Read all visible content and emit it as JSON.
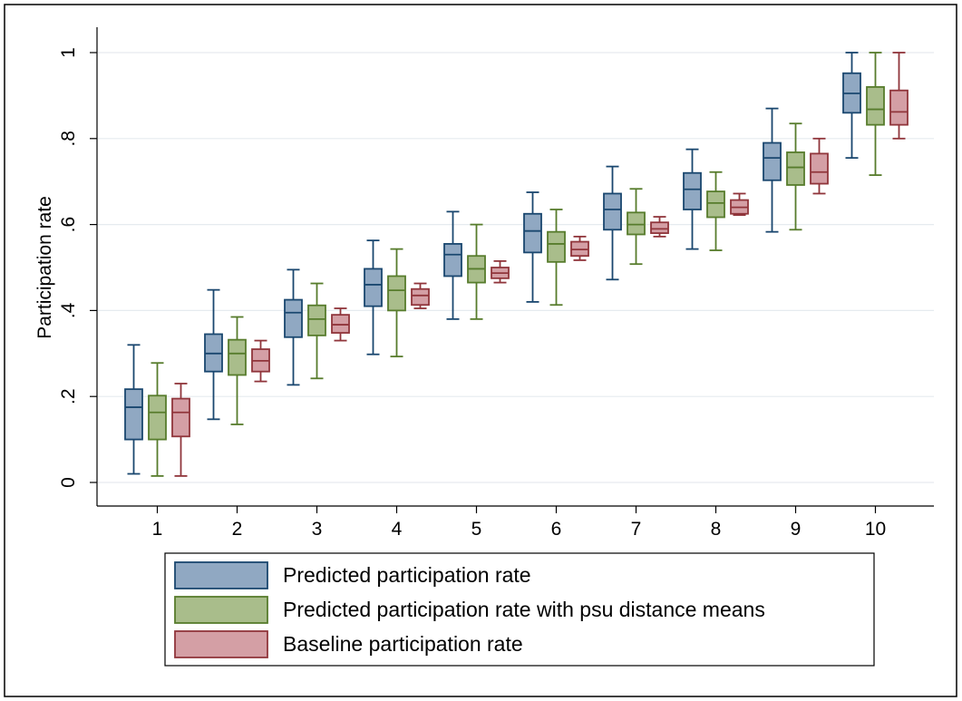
{
  "chart_data": {
    "type": "box",
    "ylabel": "Participation rate",
    "ylim": [
      0,
      1
    ],
    "yticks": [
      {
        "value": 0,
        "label": "0"
      },
      {
        "value": 0.2,
        "label": ".2"
      },
      {
        "value": 0.4,
        "label": ".4"
      },
      {
        "value": 0.6,
        "label": ".6"
      },
      {
        "value": 0.8,
        "label": ".8"
      },
      {
        "value": 1,
        "label": "1"
      }
    ],
    "categories": [
      "1",
      "2",
      "3",
      "4",
      "5",
      "6",
      "7",
      "8",
      "9",
      "10"
    ],
    "grid": true,
    "legend_position": "bottom",
    "series": [
      {
        "name": "Predicted participation rate",
        "fill": "#90a8c2",
        "stroke": "#1a476f",
        "boxes": [
          {
            "min": 0.02,
            "q1": 0.1,
            "median": 0.175,
            "q3": 0.217,
            "max": 0.32
          },
          {
            "min": 0.147,
            "q1": 0.258,
            "median": 0.3,
            "q3": 0.345,
            "max": 0.448
          },
          {
            "min": 0.227,
            "q1": 0.338,
            "median": 0.395,
            "q3": 0.425,
            "max": 0.495
          },
          {
            "min": 0.298,
            "q1": 0.41,
            "median": 0.46,
            "q3": 0.497,
            "max": 0.563
          },
          {
            "min": 0.38,
            "q1": 0.48,
            "median": 0.53,
            "q3": 0.555,
            "max": 0.63
          },
          {
            "min": 0.42,
            "q1": 0.535,
            "median": 0.585,
            "q3": 0.625,
            "max": 0.675
          },
          {
            "min": 0.472,
            "q1": 0.588,
            "median": 0.635,
            "q3": 0.672,
            "max": 0.735
          },
          {
            "min": 0.543,
            "q1": 0.635,
            "median": 0.682,
            "q3": 0.72,
            "max": 0.775
          },
          {
            "min": 0.583,
            "q1": 0.703,
            "median": 0.755,
            "q3": 0.79,
            "max": 0.87
          },
          {
            "min": 0.755,
            "q1": 0.86,
            "median": 0.905,
            "q3": 0.952,
            "max": 1.0
          }
        ]
      },
      {
        "name": "Predicted participation rate with psu distance means",
        "fill": "#a9bd8b",
        "stroke": "#577c2c",
        "boxes": [
          {
            "min": 0.015,
            "q1": 0.1,
            "median": 0.163,
            "q3": 0.202,
            "max": 0.278
          },
          {
            "min": 0.135,
            "q1": 0.25,
            "median": 0.3,
            "q3": 0.332,
            "max": 0.385
          },
          {
            "min": 0.242,
            "q1": 0.342,
            "median": 0.38,
            "q3": 0.412,
            "max": 0.463
          },
          {
            "min": 0.293,
            "q1": 0.4,
            "median": 0.447,
            "q3": 0.48,
            "max": 0.543
          },
          {
            "min": 0.38,
            "q1": 0.465,
            "median": 0.497,
            "q3": 0.527,
            "max": 0.6
          },
          {
            "min": 0.413,
            "q1": 0.513,
            "median": 0.555,
            "q3": 0.583,
            "max": 0.635
          },
          {
            "min": 0.508,
            "q1": 0.577,
            "median": 0.6,
            "q3": 0.628,
            "max": 0.683
          },
          {
            "min": 0.54,
            "q1": 0.617,
            "median": 0.65,
            "q3": 0.677,
            "max": 0.722
          },
          {
            "min": 0.588,
            "q1": 0.692,
            "median": 0.733,
            "q3": 0.768,
            "max": 0.835
          },
          {
            "min": 0.715,
            "q1": 0.832,
            "median": 0.868,
            "q3": 0.92,
            "max": 1.0
          }
        ]
      },
      {
        "name": "Baseline participation rate",
        "fill": "#d49fa5",
        "stroke": "#90353b",
        "boxes": [
          {
            "min": 0.015,
            "q1": 0.107,
            "median": 0.163,
            "q3": 0.195,
            "max": 0.23
          },
          {
            "min": 0.235,
            "q1": 0.258,
            "median": 0.283,
            "q3": 0.31,
            "max": 0.33
          },
          {
            "min": 0.33,
            "q1": 0.348,
            "median": 0.367,
            "q3": 0.39,
            "max": 0.405
          },
          {
            "min": 0.405,
            "q1": 0.413,
            "median": 0.435,
            "q3": 0.45,
            "max": 0.463
          },
          {
            "min": 0.465,
            "q1": 0.475,
            "median": 0.487,
            "q3": 0.5,
            "max": 0.515
          },
          {
            "min": 0.517,
            "q1": 0.527,
            "median": 0.542,
            "q3": 0.56,
            "max": 0.572
          },
          {
            "min": 0.572,
            "q1": 0.58,
            "median": 0.59,
            "q3": 0.605,
            "max": 0.618
          },
          {
            "min": 0.622,
            "q1": 0.625,
            "median": 0.64,
            "q3": 0.657,
            "max": 0.672
          },
          {
            "min": 0.672,
            "q1": 0.695,
            "median": 0.722,
            "q3": 0.765,
            "max": 0.8
          },
          {
            "min": 0.8,
            "q1": 0.832,
            "median": 0.862,
            "q3": 0.912,
            "max": 1.0
          }
        ]
      }
    ]
  }
}
